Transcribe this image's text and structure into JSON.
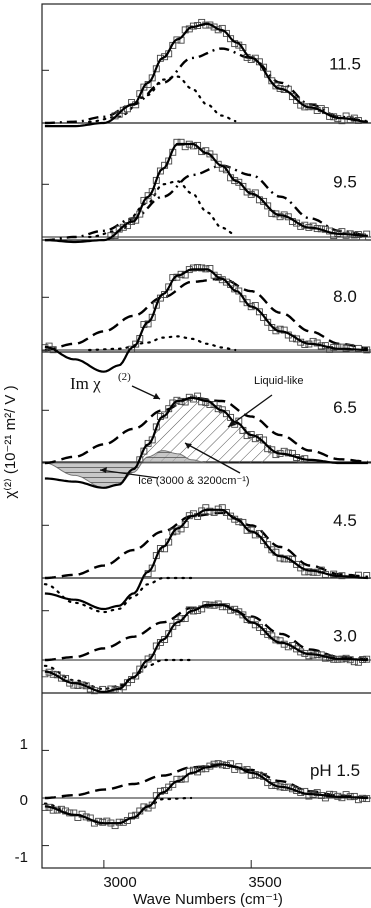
{
  "chart_data": {
    "type": "line",
    "title": "",
    "xlabel": "Wave Numbers (cm⁻¹)",
    "ylabel": "χ⁽²⁾ (10⁻²¹ m²/ V )",
    "xlim": [
      2790,
      3910
    ],
    "x_ticks": [
      "3000",
      "3500"
    ],
    "y_ticks_bottom_panel": [
      "-1",
      "0",
      "1"
    ],
    "ylim_bottom_panel": [
      -1.2,
      1.9
    ],
    "panels": [
      {
        "label": "11.5",
        "fit": {
          "x": [
            2800,
            2900,
            3000,
            3100,
            3150,
            3200,
            3250,
            3300,
            3350,
            3400,
            3450,
            3500,
            3600,
            3700,
            3800,
            3900
          ],
          "y": [
            -0.05,
            -0.05,
            0.0,
            0.3,
            0.65,
            1.05,
            1.35,
            1.55,
            1.6,
            1.5,
            1.3,
            1.05,
            0.55,
            0.25,
            0.08,
            0.02
          ]
        },
        "liquid_component": {
          "x": [
            2800,
            2900,
            3000,
            3100,
            3200,
            3300,
            3400,
            3500,
            3600,
            3700,
            3800,
            3900
          ],
          "y": [
            0.0,
            0.02,
            0.1,
            0.3,
            0.65,
            1.05,
            1.2,
            1.05,
            0.65,
            0.3,
            0.1,
            0.03
          ]
        },
        "ice_component": {
          "x": [
            2950,
            3050,
            3150,
            3200,
            3250,
            3300,
            3350,
            3400,
            3450
          ],
          "y": [
            0.02,
            0.1,
            0.45,
            0.7,
            0.75,
            0.55,
            0.3,
            0.12,
            0.03
          ]
        }
      },
      {
        "label": "9.5",
        "fit": {
          "x": [
            2800,
            2900,
            3000,
            3100,
            3150,
            3200,
            3250,
            3300,
            3350,
            3400,
            3450,
            3500,
            3600,
            3700,
            3800,
            3900
          ],
          "y": [
            -0.05,
            -0.08,
            -0.05,
            0.25,
            0.65,
            1.1,
            1.5,
            1.5,
            1.35,
            1.15,
            0.9,
            0.7,
            0.35,
            0.15,
            0.05,
            0.02
          ]
        },
        "liquid_component": {
          "x": [
            2800,
            2900,
            3000,
            3100,
            3200,
            3300,
            3400,
            3500,
            3600,
            3700,
            3800,
            3900
          ],
          "y": [
            -0.05,
            0.0,
            0.1,
            0.3,
            0.65,
            1.0,
            1.15,
            1.0,
            0.65,
            0.3,
            0.1,
            0.03
          ]
        },
        "ice_component": {
          "x": [
            2950,
            3050,
            3150,
            3200,
            3250,
            3300,
            3350,
            3400,
            3450
          ],
          "y": [
            0.0,
            0.1,
            0.55,
            0.85,
            0.9,
            0.7,
            0.4,
            0.15,
            0.03
          ]
        }
      },
      {
        "label": "8.0",
        "fit": {
          "x": [
            2800,
            2900,
            3000,
            3050,
            3100,
            3150,
            3200,
            3250,
            3300,
            3350,
            3400,
            3450,
            3500,
            3600,
            3700,
            3800,
            3900
          ],
          "y": [
            0.05,
            -0.15,
            -0.35,
            -0.25,
            0.05,
            0.45,
            0.9,
            1.2,
            1.3,
            1.3,
            1.15,
            0.95,
            0.7,
            0.3,
            0.1,
            0.02,
            0.0
          ]
        },
        "liquid_component": {
          "x": [
            2800,
            2900,
            3000,
            3100,
            3200,
            3300,
            3400,
            3500,
            3600,
            3700,
            3800,
            3900
          ],
          "y": [
            0.0,
            0.1,
            0.3,
            0.55,
            0.85,
            1.1,
            1.15,
            0.95,
            0.6,
            0.3,
            0.1,
            0.03
          ]
        },
        "ice_component": {
          "x": [
            2950,
            3050,
            3150,
            3200,
            3250,
            3300,
            3350,
            3400,
            3450
          ],
          "y": [
            0.0,
            0.02,
            0.12,
            0.2,
            0.22,
            0.18,
            0.1,
            0.04,
            0.0
          ]
        }
      },
      {
        "label": "6.5",
        "fit": {
          "x": [
            2800,
            2900,
            3000,
            3050,
            3100,
            3150,
            3200,
            3250,
            3300,
            3350,
            3400,
            3450,
            3500,
            3600,
            3700,
            3800,
            3900
          ],
          "y": [
            -0.25,
            -0.3,
            -0.4,
            -0.35,
            -0.1,
            0.3,
            0.75,
            1.0,
            1.05,
            1.0,
            0.85,
            0.65,
            0.45,
            0.15,
            0.05,
            0.0,
            0.0
          ]
        },
        "liquid_component": {
          "x": [
            2800,
            2900,
            3000,
            3100,
            3200,
            3300,
            3400,
            3500,
            3600,
            3700,
            3800,
            3900
          ],
          "y": [
            0.0,
            0.1,
            0.3,
            0.55,
            0.85,
            1.05,
            1.0,
            0.75,
            0.45,
            0.2,
            0.06,
            0.02
          ]
        },
        "ice_component": {
          "x": [
            2800,
            2900,
            3000,
            3050,
            3100,
            3150,
            3200,
            3250,
            3300,
            3350,
            3400
          ],
          "y": [
            0.0,
            -0.2,
            -0.4,
            -0.35,
            -0.15,
            0.1,
            0.2,
            0.15,
            0.05,
            0.0,
            0.0
          ]
        }
      },
      {
        "label": "4.5",
        "fit": {
          "x": [
            2800,
            2900,
            3000,
            3050,
            3100,
            3150,
            3200,
            3250,
            3300,
            3350,
            3400,
            3450,
            3500,
            3600,
            3700,
            3800,
            3900
          ],
          "y": [
            -0.25,
            -0.35,
            -0.5,
            -0.45,
            -0.25,
            0.1,
            0.5,
            0.8,
            1.0,
            1.1,
            1.1,
            0.95,
            0.75,
            0.35,
            0.12,
            0.03,
            0.0
          ]
        },
        "liquid_component": {
          "x": [
            2800,
            2900,
            3000,
            3100,
            3200,
            3300,
            3400,
            3500,
            3600,
            3700,
            3800,
            3900
          ],
          "y": [
            0.0,
            0.05,
            0.2,
            0.45,
            0.75,
            1.0,
            1.05,
            0.85,
            0.5,
            0.2,
            0.06,
            0.02
          ]
        },
        "ice_component": {
          "x": [
            2800,
            2900,
            3000,
            3050,
            3100,
            3150,
            3200,
            3300
          ],
          "y": [
            -0.1,
            -0.4,
            -0.55,
            -0.5,
            -0.3,
            -0.1,
            0.0,
            0.0
          ]
        }
      },
      {
        "label": "3.0",
        "fit": {
          "x": [
            2800,
            2900,
            3000,
            3050,
            3100,
            3150,
            3200,
            3250,
            3300,
            3350,
            3400,
            3450,
            3500,
            3600,
            3700,
            3800,
            3900
          ],
          "y": [
            -0.2,
            -0.4,
            -0.55,
            -0.5,
            -0.3,
            0.0,
            0.35,
            0.65,
            0.85,
            0.95,
            0.95,
            0.85,
            0.65,
            0.3,
            0.1,
            0.02,
            0.0
          ]
        },
        "liquid_component": {
          "x": [
            2800,
            2900,
            3000,
            3100,
            3200,
            3300,
            3400,
            3500,
            3600,
            3700,
            3800,
            3900
          ],
          "y": [
            0.0,
            0.05,
            0.2,
            0.4,
            0.65,
            0.9,
            0.95,
            0.75,
            0.45,
            0.18,
            0.05,
            0.02
          ]
        },
        "ice_component": {
          "x": [
            2800,
            2900,
            3000,
            3050,
            3100,
            3150,
            3200,
            3300
          ],
          "y": [
            -0.1,
            -0.35,
            -0.5,
            -0.45,
            -0.3,
            -0.1,
            0.0,
            0.0
          ]
        }
      },
      {
        "label": "pH 1.5",
        "fit": {
          "x": [
            2800,
            2900,
            3000,
            3050,
            3100,
            3150,
            3200,
            3250,
            3300,
            3350,
            3400,
            3450,
            3500,
            3600,
            3700,
            3800,
            3900
          ],
          "y": [
            -0.15,
            -0.3,
            -0.45,
            -0.45,
            -0.35,
            -0.15,
            0.1,
            0.3,
            0.45,
            0.55,
            0.6,
            0.55,
            0.45,
            0.2,
            0.07,
            0.02,
            0.0
          ]
        },
        "liquid_component": {
          "x": [
            2800,
            2900,
            3000,
            3100,
            3200,
            3300,
            3400,
            3500,
            3600,
            3700,
            3800,
            3900
          ],
          "y": [
            0.0,
            0.05,
            0.15,
            0.25,
            0.4,
            0.55,
            0.6,
            0.5,
            0.3,
            0.12,
            0.04,
            0.01
          ]
        },
        "ice_component": {
          "x": [
            2800,
            2900,
            3000,
            3050,
            3100,
            3150,
            3200,
            3300
          ],
          "y": [
            -0.1,
            -0.3,
            -0.45,
            -0.45,
            -0.35,
            -0.15,
            -0.02,
            0.0
          ]
        }
      }
    ],
    "annotations": {
      "im_chi_base": "Im χ",
      "im_chi_sup": "(2)",
      "liquid_like": "Liquid-like",
      "ice": "Ice (3000 & 3200cm⁻¹)"
    },
    "styles": {
      "fit_color": "#000000",
      "liquid_color": "#000000",
      "ice_color": "#000000",
      "marker_color": "#444444",
      "ice_fill": "#b0b0b0",
      "hatch_color": "#555555"
    }
  }
}
